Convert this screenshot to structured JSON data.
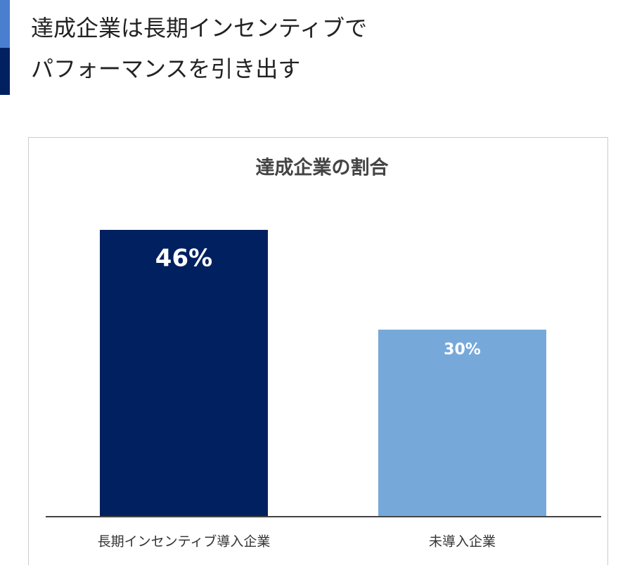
{
  "heading": {
    "lines": [
      "達成企業は長期インセンティブで",
      "パフォーマンスを引き出す"
    ]
  },
  "chart_data": {
    "type": "bar",
    "title": "達成企業の割合",
    "categories": [
      "長期インセンティブ導入企業",
      "未導入企業"
    ],
    "values": [
      46,
      30
    ],
    "value_labels": [
      "46%",
      "30%"
    ],
    "colors": [
      "#002060",
      "#76a9da"
    ]
  }
}
